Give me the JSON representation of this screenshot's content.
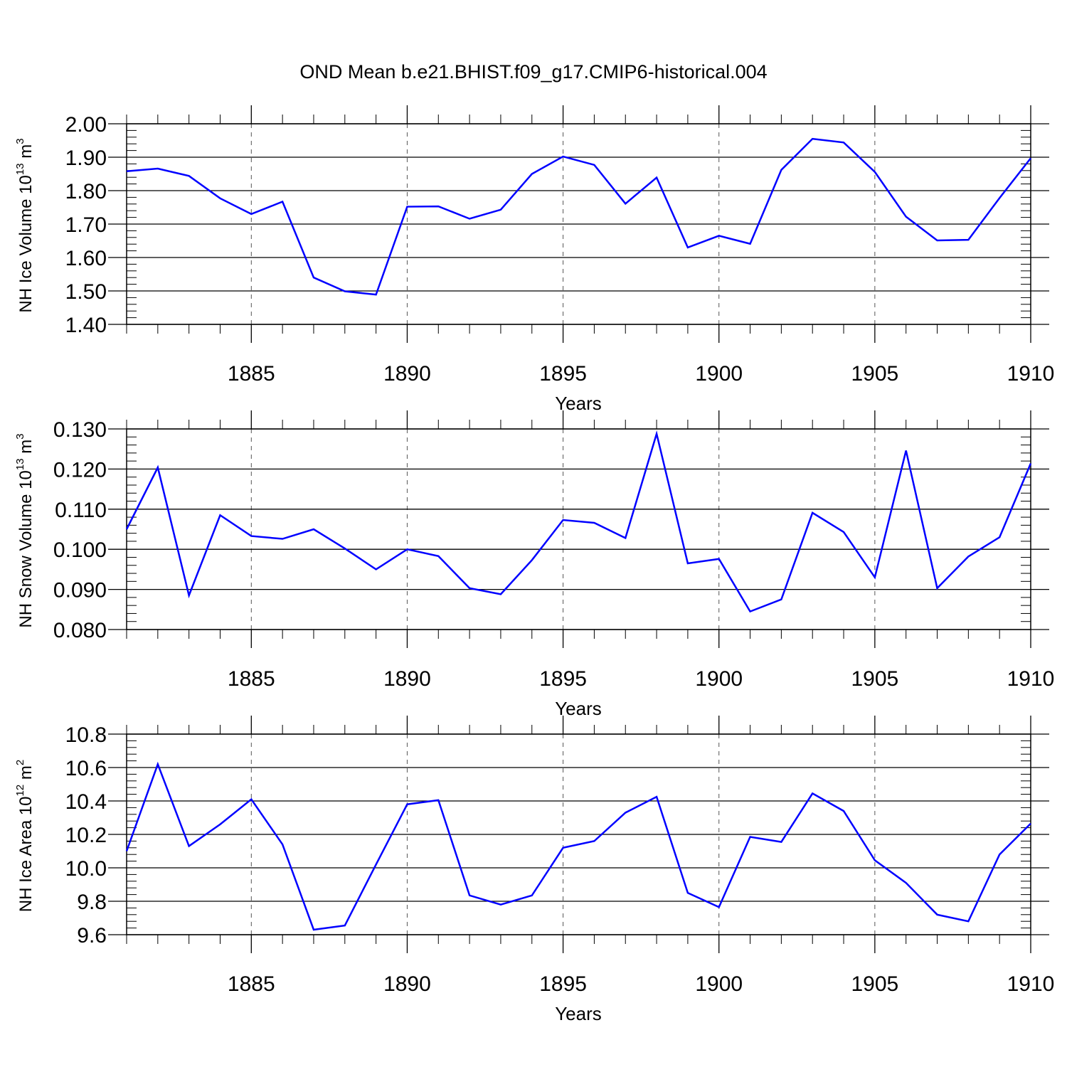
{
  "title": "OND Mean b.e21.BHIST.f09_g17.CMIP6-historical.004",
  "colors": {
    "line": "#0000ff",
    "axis": "#000000",
    "grid": "#555555"
  },
  "chart_data": [
    {
      "type": "line",
      "ylabel": {
        "main": "NH Ice Volume 10",
        "exp": "13",
        "unit": " m",
        "unit_exp": "3"
      },
      "xlabel": "Years",
      "xlim": [
        1881,
        1910
      ],
      "ylim": [
        1.4,
        2.0
      ],
      "ytick_values": [
        1.4,
        1.5,
        1.6,
        1.7,
        1.8,
        1.9,
        2.0
      ],
      "ytick_labels": [
        "1.40",
        "1.50",
        "1.60",
        "1.70",
        "1.80",
        "1.90",
        "2.00"
      ],
      "ytick_minor_step": 0.02,
      "xtick_values": [
        1885,
        1890,
        1895,
        1900,
        1905,
        1910
      ],
      "xtick_labels": [
        "1885",
        "1890",
        "1895",
        "1900",
        "1905",
        "1910"
      ],
      "xgrid": "dashed",
      "series": [
        {
          "name": "NH Ice Volume",
          "x": [
            1881,
            1882,
            1883,
            1884,
            1885,
            1886,
            1887,
            1888,
            1889,
            1890,
            1891,
            1892,
            1893,
            1894,
            1895,
            1896,
            1897,
            1898,
            1899,
            1900,
            1901,
            1902,
            1903,
            1904,
            1905,
            1906,
            1907,
            1908,
            1909,
            1910
          ],
          "values": [
            1.858,
            1.866,
            1.844,
            1.777,
            1.73,
            1.767,
            1.54,
            1.499,
            1.489,
            1.752,
            1.753,
            1.716,
            1.743,
            1.85,
            1.902,
            1.877,
            1.761,
            1.839,
            1.63,
            1.665,
            1.641,
            1.862,
            1.955,
            1.944,
            1.856,
            1.722,
            1.651,
            1.653,
            1.778,
            1.897
          ]
        }
      ]
    },
    {
      "type": "line",
      "ylabel": {
        "main": "NH Snow Volume 10",
        "exp": "13",
        "unit": " m",
        "unit_exp": "3"
      },
      "xlabel": "Years",
      "xlim": [
        1881,
        1910
      ],
      "ylim": [
        0.08,
        0.13
      ],
      "ytick_values": [
        0.08,
        0.09,
        0.1,
        0.11,
        0.12,
        0.13
      ],
      "ytick_labels": [
        "0.080",
        "0.090",
        "0.100",
        "0.110",
        "0.120",
        "0.130"
      ],
      "ytick_minor_step": 0.002,
      "xtick_values": [
        1885,
        1890,
        1895,
        1900,
        1905,
        1910
      ],
      "xtick_labels": [
        "1885",
        "1890",
        "1895",
        "1900",
        "1905",
        "1910"
      ],
      "xgrid": "dashed",
      "series": [
        {
          "name": "NH Snow Volume",
          "x": [
            1881,
            1882,
            1883,
            1884,
            1885,
            1886,
            1887,
            1888,
            1889,
            1890,
            1891,
            1892,
            1893,
            1894,
            1895,
            1896,
            1897,
            1898,
            1899,
            1900,
            1901,
            1902,
            1903,
            1904,
            1905,
            1906,
            1907,
            1908,
            1909,
            1910
          ],
          "values": [
            0.105,
            0.1204,
            0.0885,
            0.1085,
            0.1033,
            0.1026,
            0.105,
            0.1002,
            0.095,
            0.1,
            0.0983,
            0.0903,
            0.0888,
            0.0973,
            0.1073,
            0.1066,
            0.1028,
            0.1288,
            0.0965,
            0.0976,
            0.0845,
            0.0875,
            0.1091,
            0.1043,
            0.093,
            0.1246,
            0.0903,
            0.0982,
            0.103,
            0.1214
          ]
        }
      ]
    },
    {
      "type": "line",
      "ylabel": {
        "main": "NH Ice Area 10",
        "exp": "12",
        "unit": " m",
        "unit_exp": "2"
      },
      "xlabel": "Years",
      "xlim": [
        1881,
        1910
      ],
      "ylim": [
        9.6,
        10.8
      ],
      "ytick_values": [
        9.6,
        9.8,
        10.0,
        10.2,
        10.4,
        10.6,
        10.8
      ],
      "ytick_labels": [
        "9.6",
        "9.8",
        "10.0",
        "10.2",
        "10.4",
        "10.6",
        "10.8"
      ],
      "ytick_minor_step": 0.04,
      "xtick_values": [
        1885,
        1890,
        1895,
        1900,
        1905,
        1910
      ],
      "xtick_labels": [
        "1885",
        "1890",
        "1895",
        "1900",
        "1905",
        "1910"
      ],
      "xgrid": "dashed",
      "series": [
        {
          "name": "NH Ice Area",
          "x": [
            1881,
            1882,
            1883,
            1884,
            1885,
            1886,
            1887,
            1888,
            1889,
            1890,
            1891,
            1892,
            1893,
            1894,
            1895,
            1896,
            1897,
            1898,
            1899,
            1900,
            1901,
            1902,
            1903,
            1904,
            1905,
            1906,
            1907,
            1908,
            1909,
            1910
          ],
          "values": [
            10.1,
            10.62,
            10.13,
            10.26,
            10.41,
            10.14,
            9.63,
            9.655,
            10.02,
            10.38,
            10.405,
            9.835,
            9.78,
            9.835,
            10.12,
            10.16,
            10.33,
            10.425,
            9.85,
            9.765,
            10.185,
            10.155,
            10.445,
            10.34,
            10.045,
            9.91,
            9.72,
            9.68,
            10.08,
            10.265
          ]
        }
      ]
    }
  ]
}
